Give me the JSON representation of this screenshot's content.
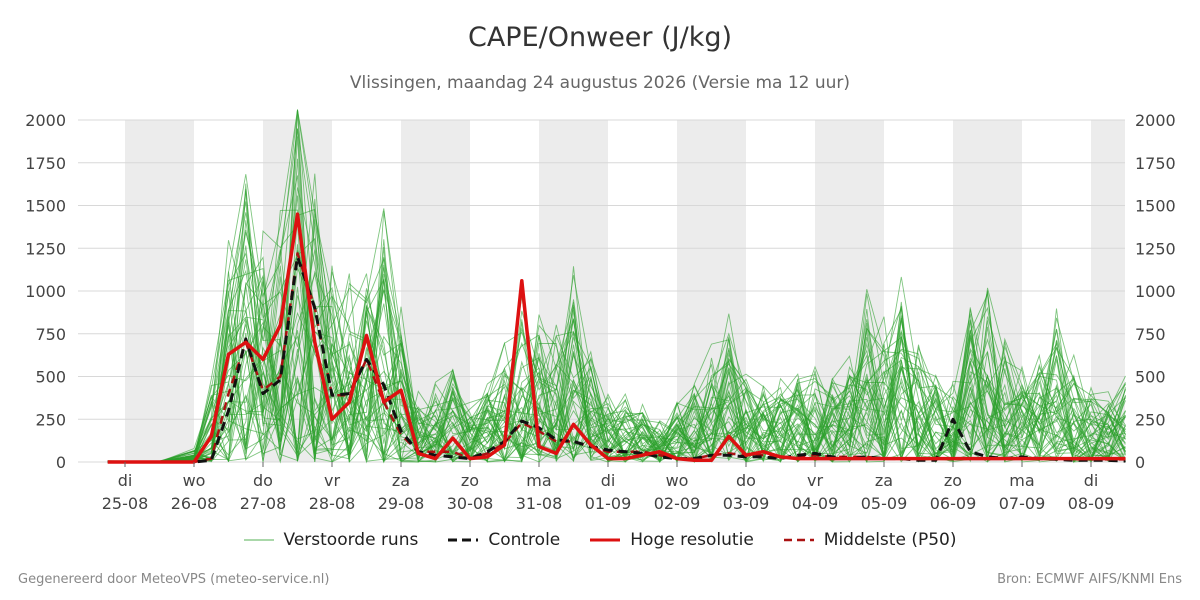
{
  "header": {
    "title": "CAPE/Onweer (J/kg)",
    "subtitle": "Vlissingen, maandag 24 augustus 2026 (Versie ma 12 uur)"
  },
  "footer": {
    "left": "Gegenereerd door MeteoVPS (meteo-service.nl)",
    "right": "Bron: ECMWF AIFS/KNMI Ens"
  },
  "colors": {
    "ensemble": "#2ca02c",
    "control": "#111111",
    "hires": "#dd1111",
    "median": "#aa1111",
    "weekend_band": "#ececec",
    "grid": "#d8d8d8"
  },
  "legend": [
    {
      "label": "Verstoorde runs",
      "style": "thin-green"
    },
    {
      "label": "Controle",
      "style": "black-dashed"
    },
    {
      "label": "Hoge resolutie",
      "style": "red-solid"
    },
    {
      "label": "Middelste (P50)",
      "style": "darkred-dashed"
    }
  ],
  "chart_data": {
    "type": "line",
    "title": "CAPE/Onweer (J/kg)",
    "x_unit": "days since 25-08 00:00",
    "ylim": [
      0,
      2000
    ],
    "yticks": [
      0,
      250,
      500,
      750,
      1000,
      1250,
      1500,
      1750,
      2000
    ],
    "x_ticks": [
      {
        "day": "di",
        "date": "25-08"
      },
      {
        "day": "wo",
        "date": "26-08"
      },
      {
        "day": "do",
        "date": "27-08"
      },
      {
        "day": "vr",
        "date": "28-08"
      },
      {
        "day": "za",
        "date": "29-08"
      },
      {
        "day": "zo",
        "date": "30-08"
      },
      {
        "day": "ma",
        "date": "31-08"
      },
      {
        "day": "di",
        "date": "01-09"
      },
      {
        "day": "wo",
        "date": "02-09"
      },
      {
        "day": "do",
        "date": "03-09"
      },
      {
        "day": "vr",
        "date": "04-09"
      },
      {
        "day": "za",
        "date": "05-09"
      },
      {
        "day": "zo",
        "date": "06-09"
      },
      {
        "day": "ma",
        "date": "07-09"
      },
      {
        "day": "di",
        "date": "08-09"
      }
    ],
    "shaded_days": [
      0,
      2,
      4,
      6,
      8,
      10,
      12,
      14
    ],
    "xlim": [
      -0.25,
      14.5
    ],
    "grid": true,
    "legend_position": "bottom",
    "series": [
      {
        "name": "Controle",
        "style": "black-dashed",
        "points": [
          [
            -0.25,
            0
          ],
          [
            0,
            0
          ],
          [
            0.25,
            0
          ],
          [
            0.5,
            0
          ],
          [
            0.75,
            0
          ],
          [
            1,
            0
          ],
          [
            1.25,
            10
          ],
          [
            1.5,
            300
          ],
          [
            1.75,
            720
          ],
          [
            2,
            400
          ],
          [
            2.25,
            480
          ],
          [
            2.5,
            1200
          ],
          [
            2.75,
            900
          ],
          [
            3,
            390
          ],
          [
            3.25,
            400
          ],
          [
            3.5,
            600
          ],
          [
            3.75,
            450
          ],
          [
            4,
            180
          ],
          [
            4,
            180
          ],
          [
            4.25,
            60
          ],
          [
            4.5,
            40
          ],
          [
            4.75,
            30
          ],
          [
            5,
            20
          ],
          [
            5.25,
            60
          ],
          [
            5.5,
            120
          ],
          [
            5.75,
            240
          ],
          [
            6,
            200
          ],
          [
            6.25,
            130
          ],
          [
            6.5,
            120
          ],
          [
            6.75,
            90
          ],
          [
            7,
            70
          ],
          [
            7.25,
            60
          ],
          [
            7.5,
            50
          ],
          [
            7.75,
            30
          ],
          [
            8,
            20
          ],
          [
            8.25,
            20
          ],
          [
            8.5,
            40
          ],
          [
            8.75,
            40
          ],
          [
            9,
            30
          ],
          [
            9.25,
            30
          ],
          [
            9.5,
            20
          ],
          [
            9.75,
            40
          ],
          [
            10,
            50
          ],
          [
            10.25,
            30
          ],
          [
            10.5,
            20
          ],
          [
            10.75,
            30
          ],
          [
            11,
            20
          ],
          [
            11.25,
            20
          ],
          [
            11.5,
            10
          ],
          [
            11.75,
            10
          ],
          [
            12,
            250
          ],
          [
            12.25,
            60
          ],
          [
            12.5,
            30
          ],
          [
            12.75,
            20
          ],
          [
            13,
            30
          ],
          [
            13.25,
            20
          ],
          [
            13.5,
            15
          ],
          [
            13.75,
            10
          ],
          [
            14,
            10
          ],
          [
            14.25,
            10
          ],
          [
            14.5,
            5
          ]
        ]
      },
      {
        "name": "Hoge resolutie",
        "style": "red-solid",
        "points": [
          [
            -0.25,
            0
          ],
          [
            0,
            0
          ],
          [
            0.25,
            0
          ],
          [
            0.5,
            0
          ],
          [
            0.75,
            0
          ],
          [
            1,
            0
          ],
          [
            1.25,
            150
          ],
          [
            1.5,
            630
          ],
          [
            1.75,
            700
          ],
          [
            2,
            600
          ],
          [
            2.25,
            800
          ],
          [
            2.5,
            1450
          ],
          [
            2.75,
            700
          ],
          [
            3,
            250
          ],
          [
            3.25,
            350
          ],
          [
            3.5,
            740
          ],
          [
            3.75,
            350
          ],
          [
            4,
            420
          ],
          [
            4.25,
            50
          ],
          [
            4.5,
            20
          ],
          [
            4.75,
            140
          ],
          [
            5,
            20
          ],
          [
            5.25,
            30
          ],
          [
            5.5,
            100
          ],
          [
            5.75,
            1060
          ],
          [
            6,
            90
          ],
          [
            6.25,
            50
          ],
          [
            6.5,
            220
          ],
          [
            6.75,
            100
          ],
          [
            7,
            20
          ],
          [
            7.25,
            20
          ],
          [
            7.5,
            40
          ],
          [
            7.75,
            60
          ],
          [
            8,
            20
          ],
          [
            8.25,
            10
          ],
          [
            8.5,
            10
          ],
          [
            8.75,
            150
          ],
          [
            9,
            40
          ],
          [
            9.25,
            60
          ],
          [
            9.5,
            30
          ],
          [
            9.75,
            20
          ],
          [
            10,
            20
          ],
          [
            10.25,
            20
          ],
          [
            10.5,
            20
          ],
          [
            10.75,
            20
          ],
          [
            11,
            20
          ],
          [
            11.25,
            20
          ],
          [
            11.5,
            20
          ],
          [
            11.75,
            20
          ],
          [
            12,
            20
          ],
          [
            12.25,
            20
          ],
          [
            12.5,
            20
          ],
          [
            12.75,
            20
          ],
          [
            13,
            20
          ],
          [
            13.25,
            20
          ],
          [
            13.5,
            20
          ],
          [
            13.75,
            20
          ],
          [
            14,
            20
          ],
          [
            14.25,
            20
          ],
          [
            14.5,
            20
          ]
        ]
      },
      {
        "name": "Middelste (P50)",
        "style": "darkred-dashed",
        "points": [
          [
            -0.25,
            0
          ],
          [
            0,
            0
          ],
          [
            0.25,
            0
          ],
          [
            0.5,
            0
          ],
          [
            0.75,
            0
          ],
          [
            1,
            0
          ],
          [
            1.25,
            20
          ],
          [
            1.5,
            400
          ],
          [
            1.75,
            700
          ],
          [
            2,
            420
          ],
          [
            2.25,
            500
          ],
          [
            2.5,
            1220
          ],
          [
            2.75,
            900
          ],
          [
            3,
            390
          ],
          [
            3.25,
            390
          ],
          [
            3.5,
            600
          ],
          [
            3.75,
            350
          ],
          [
            4,
            160
          ],
          [
            4.25,
            60
          ],
          [
            4.5,
            60
          ],
          [
            4.75,
            60
          ],
          [
            5,
            20
          ],
          [
            5.25,
            50
          ],
          [
            5.5,
            110
          ],
          [
            5.75,
            230
          ],
          [
            6,
            180
          ],
          [
            6.25,
            120
          ],
          [
            6.5,
            120
          ],
          [
            6.75,
            90
          ],
          [
            7,
            60
          ],
          [
            7.25,
            60
          ],
          [
            7.5,
            60
          ],
          [
            7.75,
            40
          ],
          [
            8,
            20
          ],
          [
            8.25,
            20
          ],
          [
            8.5,
            40
          ],
          [
            8.75,
            50
          ],
          [
            9,
            40
          ],
          [
            9.25,
            40
          ],
          [
            9.5,
            30
          ],
          [
            9.75,
            30
          ],
          [
            10,
            40
          ],
          [
            10.25,
            30
          ],
          [
            10.5,
            30
          ],
          [
            10.75,
            30
          ],
          [
            11,
            20
          ],
          [
            11.25,
            20
          ],
          [
            11.5,
            20
          ],
          [
            11.75,
            20
          ],
          [
            12,
            20
          ],
          [
            12.25,
            20
          ],
          [
            12.5,
            20
          ],
          [
            12.75,
            20
          ],
          [
            13,
            20
          ],
          [
            13.25,
            20
          ],
          [
            13.5,
            20
          ],
          [
            13.75,
            15
          ],
          [
            14,
            15
          ],
          [
            14.25,
            15
          ],
          [
            14.5,
            15
          ]
        ]
      }
    ],
    "ensemble": {
      "name": "Verstoorde runs",
      "members": 50,
      "summary": "Perturbed members spread roughly 0-2050 J/kg with peaks near 27-08 / 28-08 (up to ~2000), secondary peaks near 31-08 and scattered peaks up to ~1150 between 05-09 and 07-09",
      "envelope_p90": [
        [
          -0.25,
          5
        ],
        [
          0.5,
          5
        ],
        [
          1,
          60
        ],
        [
          1.25,
          400
        ],
        [
          1.5,
          1000
        ],
        [
          1.75,
          1350
        ],
        [
          2,
          1000
        ],
        [
          2.25,
          1100
        ],
        [
          2.5,
          1750
        ],
        [
          2.75,
          1450
        ],
        [
          3,
          900
        ],
        [
          3.25,
          800
        ],
        [
          3.5,
          900
        ],
        [
          3.75,
          1100
        ],
        [
          4,
          700
        ],
        [
          4.25,
          300
        ],
        [
          4.5,
          350
        ],
        [
          4.75,
          500
        ],
        [
          5,
          250
        ],
        [
          5.25,
          350
        ],
        [
          5.5,
          500
        ],
        [
          5.75,
          850
        ],
        [
          6,
          700
        ],
        [
          6.25,
          650
        ],
        [
          6.5,
          850
        ],
        [
          6.75,
          500
        ],
        [
          7,
          350
        ],
        [
          7.25,
          300
        ],
        [
          7.5,
          250
        ],
        [
          7.75,
          200
        ],
        [
          8,
          250
        ],
        [
          8.25,
          350
        ],
        [
          8.5,
          500
        ],
        [
          8.75,
          650
        ],
        [
          9,
          400
        ],
        [
          9.25,
          350
        ],
        [
          9.5,
          350
        ],
        [
          9.75,
          450
        ],
        [
          10,
          450
        ],
        [
          10.25,
          350
        ],
        [
          10.5,
          450
        ],
        [
          10.75,
          750
        ],
        [
          11,
          650
        ],
        [
          11.25,
          800
        ],
        [
          11.5,
          600
        ],
        [
          11.75,
          450
        ],
        [
          12,
          350
        ],
        [
          12.25,
          800
        ],
        [
          12.5,
          900
        ],
        [
          12.75,
          550
        ],
        [
          13,
          400
        ],
        [
          13.25,
          500
        ],
        [
          13.5,
          700
        ],
        [
          13.75,
          450
        ],
        [
          14,
          350
        ],
        [
          14.25,
          300
        ],
        [
          14.5,
          400
        ]
      ]
    }
  }
}
